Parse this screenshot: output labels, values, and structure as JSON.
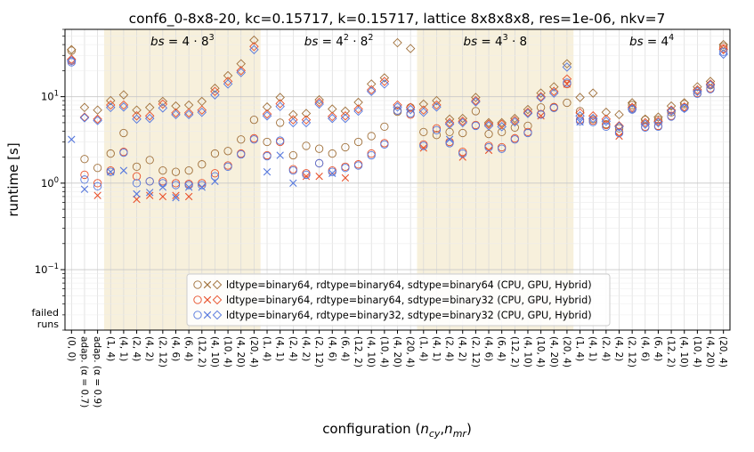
{
  "chart_data": {
    "type": "scatter",
    "title": "conf6_0-8x8-20, kc=0.15717, k=0.15717, lattice 8x8x8x8, res=1e-06, nkv=7",
    "xlabel": "configuration (n_cy,n_mr)",
    "ylabel": "runtime [s]",
    "yscale": "log",
    "ylim": [
      0.02,
      60
    ],
    "y_ticks": [
      {
        "value": 0.1,
        "base": "10",
        "exp": "−1"
      },
      {
        "value": 1,
        "base": "10",
        "exp": "0"
      },
      {
        "value": 10,
        "base": "10",
        "exp": "1"
      }
    ],
    "failed_label_line1": "failed",
    "failed_label_line2": "runs",
    "categories": [
      "(0, 0)",
      "adap. (α = 0.7)",
      "adap. (α = 0.9)",
      "(1, 4)",
      "(4, 1)",
      "(2, 4)",
      "(4, 2)",
      "(2, 12)",
      "(4, 6)",
      "(6, 4)",
      "(12, 2)",
      "(4, 10)",
      "(10, 4)",
      "(4, 20)",
      "(20, 4)",
      "(1, 4)",
      "(4, 1)",
      "(2, 4)",
      "(4, 2)",
      "(2, 12)",
      "(4, 6)",
      "(6, 4)",
      "(12, 2)",
      "(4, 10)",
      "(10, 4)",
      "(4, 20)",
      "(20, 4)",
      "(1, 4)",
      "(4, 1)",
      "(2, 4)",
      "(4, 2)",
      "(2, 12)",
      "(4, 6)",
      "(6, 4)",
      "(12, 2)",
      "(4, 10)",
      "(10, 4)",
      "(4, 20)",
      "(20, 4)",
      "(1, 4)",
      "(4, 1)",
      "(2, 4)",
      "(4, 2)",
      "(2, 12)",
      "(4, 6)",
      "(6, 4)",
      "(12, 2)",
      "(4, 10)",
      "(10, 4)",
      "(4, 20)",
      "(20, 4)"
    ],
    "regions": [
      {
        "label": "bs = 4·8³",
        "base": "4 · 8",
        "sup": "3",
        "start": 3,
        "end": 14,
        "shaded": true
      },
      {
        "label": "bs = 4²·8²",
        "base": "4",
        "sup": "2",
        "base2": " · 8",
        "sup2": "2",
        "start": 15,
        "end": 26,
        "shaded": false
      },
      {
        "label": "bs = 4³·8",
        "base": "4",
        "sup": "3",
        "base2": " · 8",
        "sup2": "",
        "start": 27,
        "end": 38,
        "shaded": true
      },
      {
        "label": "bs = 4⁴",
        "base": "4",
        "sup": "4",
        "start": 39,
        "end": 50,
        "shaded": false
      }
    ],
    "marker_legend": [
      "CPU (o)",
      "GPU (x)",
      "Hybrid (diamond)"
    ],
    "series": [
      {
        "name": "ldtype=binary64, rdtype=binary64, sdtype=binary64 (CPU, GPU, Hybrid)",
        "color": "#a0703a",
        "cpu": [
          34,
          1.9,
          1.5,
          2.2,
          3.8,
          1.55,
          1.85,
          1.4,
          1.35,
          1.4,
          1.65,
          2.2,
          2.35,
          3.2,
          5.4,
          3.0,
          5.0,
          2.1,
          2.7,
          2.5,
          2.2,
          2.6,
          3.0,
          3.5,
          4.5,
          6.7,
          7.5,
          3.9,
          3.6,
          3.9,
          3.8,
          6.8,
          3.7,
          3.9,
          4.4,
          4.6,
          7.5,
          7.5,
          8.5,
          6.8,
          5.5,
          4.8,
          4.3,
          8.0,
          5.4,
          5.4,
          6.6,
          8.2,
          11.7,
          13.6,
          38
        ],
        "gpu": [
          null,
          null,
          null,
          null,
          null,
          null,
          null,
          null,
          null,
          null,
          null,
          null,
          null,
          null,
          null,
          null,
          null,
          null,
          null,
          null,
          null,
          null,
          null,
          null,
          null,
          null,
          null,
          null,
          null,
          null,
          null,
          null,
          null,
          null,
          null,
          null,
          null,
          null,
          null,
          null,
          null,
          null,
          null,
          null,
          null,
          null,
          null,
          null,
          null,
          null,
          null
        ],
        "hybrid": [
          35,
          7.5,
          7.0,
          9.0,
          10.5,
          7.0,
          7.5,
          8.8,
          7.8,
          8.0,
          8.8,
          12.5,
          17.5,
          24.0,
          45.0,
          7.6,
          9.8,
          6.2,
          6.4,
          9.2,
          7.2,
          6.8,
          8.6,
          14.0,
          16.5,
          42.0,
          36.0,
          8.2,
          9.0,
          5.5,
          5.6,
          9.8,
          5.0,
          5.0,
          5.6,
          7.1,
          11.0,
          13.0,
          24.0,
          9.8,
          11.0,
          6.6,
          6.2,
          8.5,
          5.5,
          5.8,
          7.8,
          8.5,
          13.0,
          15.0,
          40.0
        ]
      },
      {
        "name": "ldtype=binary64, rdtype=binary64, sdtype=binary32 (CPU, GPU, Hybrid)",
        "color": "#e8502a",
        "cpu": [
          26,
          1.25,
          1.0,
          1.4,
          2.3,
          1.2,
          1.05,
          1.05,
          1.0,
          0.98,
          1.0,
          1.3,
          1.6,
          2.2,
          3.3,
          2.1,
          3.0,
          1.45,
          1.3,
          1.7,
          1.4,
          1.55,
          1.65,
          2.2,
          2.9,
          6.9,
          6.2,
          2.8,
          4.3,
          3.0,
          2.3,
          4.7,
          2.7,
          2.6,
          3.3,
          3.9,
          6.3,
          7.6,
          14.0,
          5.4,
          5.3,
          4.7,
          3.9,
          7.3,
          4.5,
          4.6,
          6.0,
          7.5,
          11.0,
          12.5,
          36.0
        ],
        "gpu": [
          null,
          null,
          0.72,
          null,
          null,
          0.65,
          0.72,
          0.7,
          0.72,
          0.7,
          null,
          null,
          null,
          null,
          null,
          null,
          null,
          null,
          1.2,
          1.2,
          null,
          1.15,
          null,
          null,
          null,
          null,
          null,
          2.55,
          null,
          null,
          2.0,
          null,
          2.4,
          null,
          null,
          null,
          6.0,
          null,
          14.0,
          null,
          null,
          null,
          3.5,
          null,
          null,
          null,
          null,
          null,
          null,
          null,
          null
        ],
        "hybrid": [
          27,
          5.8,
          5.5,
          8.0,
          8.0,
          6.0,
          6.0,
          8.2,
          6.5,
          6.5,
          7.0,
          11.5,
          15.0,
          20.0,
          38.0,
          6.3,
          8.3,
          5.4,
          5.4,
          8.6,
          5.9,
          6.0,
          7.2,
          12.0,
          15.0,
          8.0,
          7.5,
          7.0,
          8.0,
          5.0,
          5.2,
          9.0,
          4.8,
          4.8,
          5.3,
          6.6,
          10.0,
          11.5,
          16.0,
          6.5,
          6.0,
          5.5,
          4.6,
          7.5,
          5.0,
          5.2,
          7.0,
          7.6,
          12.0,
          14.0,
          35.0
        ]
      },
      {
        "name": "ldtype=binary64, rdtype=binary32, sdtype=binary32 (CPU, GPU, Hybrid)",
        "color": "#5577dd",
        "cpu": [
          25,
          1.1,
          0.92,
          1.35,
          2.25,
          1.0,
          1.05,
          1.0,
          0.95,
          0.95,
          0.95,
          1.2,
          1.55,
          2.15,
          3.2,
          2.05,
          3.1,
          1.4,
          1.25,
          1.7,
          1.35,
          1.5,
          1.6,
          2.1,
          2.8,
          6.9,
          6.4,
          2.7,
          4.1,
          2.9,
          2.2,
          4.6,
          2.6,
          2.5,
          3.2,
          3.8,
          6.2,
          7.4,
          14.5,
          5.2,
          5.1,
          4.5,
          3.8,
          7.1,
          4.4,
          4.5,
          5.9,
          7.4,
          10.8,
          12.2,
          33.0
        ],
        "gpu": [
          3.2,
          0.85,
          null,
          1.35,
          1.4,
          0.75,
          0.78,
          0.9,
          0.68,
          0.9,
          0.9,
          1.05,
          null,
          null,
          null,
          1.35,
          2.1,
          1.0,
          null,
          null,
          1.3,
          null,
          null,
          null,
          null,
          null,
          null,
          null,
          null,
          3.2,
          null,
          null,
          null,
          null,
          null,
          null,
          null,
          null,
          null,
          5.1,
          null,
          null,
          null,
          null,
          null,
          null,
          null,
          null,
          null,
          null,
          null
        ],
        "hybrid": [
          26,
          5.7,
          5.3,
          7.5,
          7.6,
          5.5,
          5.6,
          7.4,
          6.2,
          6.2,
          6.6,
          10.5,
          14.0,
          19.0,
          35.0,
          6.0,
          7.7,
          5.0,
          5.0,
          8.2,
          5.6,
          5.6,
          6.8,
          11.5,
          14.0,
          7.6,
          7.1,
          6.6,
          7.6,
          4.8,
          5.0,
          8.7,
          4.6,
          4.5,
          5.1,
          6.4,
          9.7,
          11.0,
          22.0,
          6.0,
          5.6,
          5.2,
          4.5,
          7.2,
          4.8,
          5.0,
          6.8,
          7.3,
          11.5,
          13.6,
          31.0
        ]
      }
    ]
  }
}
